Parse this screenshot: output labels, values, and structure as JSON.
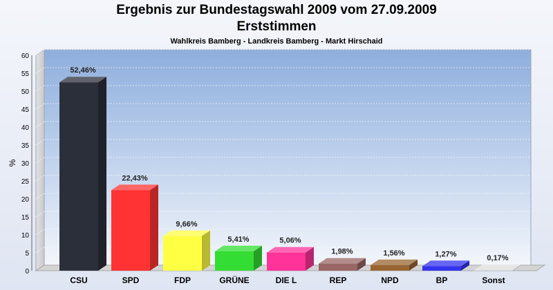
{
  "chart_data": {
    "type": "bar",
    "title": "Ergebnis zur Bundestagswahl 2009 vom 27.09.2009",
    "subtitle": "Erststimmen",
    "subsubtitle": "Wahlkreis Bamberg - Landkreis Bamberg - Markt Hirschaid",
    "ylabel": "%",
    "ylim": [
      0,
      60
    ],
    "yticks": [
      0,
      5,
      10,
      15,
      20,
      25,
      30,
      35,
      40,
      45,
      50,
      55,
      60
    ],
    "categories": [
      "CSU",
      "SPD",
      "FDP",
      "GRÜNE",
      "DIE L",
      "REP",
      "NPD",
      "BP",
      "Sonst"
    ],
    "values": [
      52.46,
      22.43,
      9.66,
      5.41,
      5.06,
      1.98,
      1.56,
      1.27,
      0.17
    ],
    "value_labels": [
      "52,46%",
      "22,43%",
      "9,66%",
      "5,41%",
      "5,06%",
      "1,98%",
      "1,56%",
      "1,27%",
      "0,17%"
    ],
    "colors": [
      "#2b2f3a",
      "#ff3333",
      "#ffff44",
      "#33dd33",
      "#ff3399",
      "#996666",
      "#996633",
      "#3333ee",
      "#dddddd"
    ],
    "grid": true
  }
}
